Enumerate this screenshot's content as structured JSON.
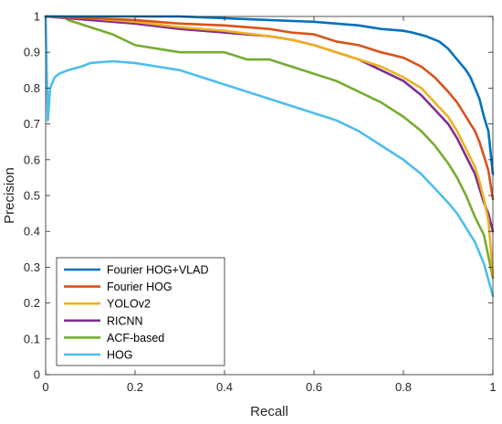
{
  "chart_data": {
    "type": "line",
    "title": "",
    "xlabel": "Recall",
    "ylabel": "Precision",
    "xlim": [
      0,
      1
    ],
    "ylim": [
      0,
      1
    ],
    "xticks": [
      "0",
      "0.2",
      "0.4",
      "0.6",
      "0.8",
      "1"
    ],
    "yticks": [
      "0",
      "0.1",
      "0.2",
      "0.3",
      "0.4",
      "0.5",
      "0.6",
      "0.7",
      "0.8",
      "0.9",
      "1"
    ],
    "grid": false,
    "legend_position": "bottom-left",
    "series": [
      {
        "name": "Fourier HOG+VLAD",
        "color": "#0072BD",
        "points": [
          [
            0.0,
            1.0
          ],
          [
            0.1,
            1.0
          ],
          [
            0.2,
            1.0
          ],
          [
            0.3,
            1.0
          ],
          [
            0.4,
            0.995
          ],
          [
            0.5,
            0.99
          ],
          [
            0.6,
            0.985
          ],
          [
            0.65,
            0.98
          ],
          [
            0.7,
            0.975
          ],
          [
            0.75,
            0.965
          ],
          [
            0.8,
            0.96
          ],
          [
            0.82,
            0.955
          ],
          [
            0.85,
            0.945
          ],
          [
            0.88,
            0.93
          ],
          [
            0.9,
            0.91
          ],
          [
            0.92,
            0.88
          ],
          [
            0.94,
            0.85
          ],
          [
            0.95,
            0.83
          ],
          [
            0.96,
            0.8
          ],
          [
            0.97,
            0.77
          ],
          [
            0.98,
            0.72
          ],
          [
            0.99,
            0.68
          ],
          [
            1.0,
            0.56
          ]
        ]
      },
      {
        "name": "Fourier HOG",
        "color": "#D95319",
        "points": [
          [
            0.0,
            1.0
          ],
          [
            0.1,
            0.995
          ],
          [
            0.2,
            0.99
          ],
          [
            0.3,
            0.98
          ],
          [
            0.4,
            0.975
          ],
          [
            0.5,
            0.965
          ],
          [
            0.55,
            0.955
          ],
          [
            0.6,
            0.95
          ],
          [
            0.65,
            0.93
          ],
          [
            0.7,
            0.92
          ],
          [
            0.75,
            0.9
          ],
          [
            0.8,
            0.885
          ],
          [
            0.84,
            0.86
          ],
          [
            0.87,
            0.83
          ],
          [
            0.9,
            0.79
          ],
          [
            0.92,
            0.76
          ],
          [
            0.94,
            0.72
          ],
          [
            0.96,
            0.68
          ],
          [
            0.97,
            0.65
          ],
          [
            0.98,
            0.61
          ],
          [
            0.99,
            0.57
          ],
          [
            1.0,
            0.49
          ]
        ]
      },
      {
        "name": "YOLOv2",
        "color": "#EDB120",
        "points": [
          [
            0.0,
            1.0
          ],
          [
            0.1,
            0.995
          ],
          [
            0.2,
            0.985
          ],
          [
            0.3,
            0.97
          ],
          [
            0.4,
            0.96
          ],
          [
            0.5,
            0.945
          ],
          [
            0.55,
            0.935
          ],
          [
            0.6,
            0.92
          ],
          [
            0.65,
            0.9
          ],
          [
            0.7,
            0.88
          ],
          [
            0.75,
            0.86
          ],
          [
            0.8,
            0.83
          ],
          [
            0.84,
            0.8
          ],
          [
            0.87,
            0.76
          ],
          [
            0.9,
            0.72
          ],
          [
            0.92,
            0.68
          ],
          [
            0.94,
            0.63
          ],
          [
            0.96,
            0.58
          ],
          [
            0.97,
            0.54
          ],
          [
            0.98,
            0.49
          ],
          [
            0.99,
            0.43
          ],
          [
            1.0,
            0.28
          ]
        ]
      },
      {
        "name": "RICNN",
        "color": "#7E2F8E",
        "points": [
          [
            0.0,
            1.0
          ],
          [
            0.1,
            0.99
          ],
          [
            0.2,
            0.98
          ],
          [
            0.3,
            0.965
          ],
          [
            0.4,
            0.955
          ],
          [
            0.5,
            0.945
          ],
          [
            0.55,
            0.935
          ],
          [
            0.6,
            0.92
          ],
          [
            0.65,
            0.9
          ],
          [
            0.7,
            0.88
          ],
          [
            0.75,
            0.85
          ],
          [
            0.8,
            0.82
          ],
          [
            0.84,
            0.78
          ],
          [
            0.87,
            0.74
          ],
          [
            0.9,
            0.7
          ],
          [
            0.92,
            0.66
          ],
          [
            0.94,
            0.61
          ],
          [
            0.96,
            0.56
          ],
          [
            0.97,
            0.52
          ],
          [
            0.98,
            0.48
          ],
          [
            0.99,
            0.45
          ],
          [
            1.0,
            0.4
          ]
        ]
      },
      {
        "name": "ACF-based",
        "color": "#77AC30",
        "points": [
          [
            0.0,
            1.0
          ],
          [
            0.04,
            1.0
          ],
          [
            0.05,
            0.99
          ],
          [
            0.1,
            0.97
          ],
          [
            0.15,
            0.95
          ],
          [
            0.2,
            0.92
          ],
          [
            0.25,
            0.91
          ],
          [
            0.3,
            0.9
          ],
          [
            0.35,
            0.9
          ],
          [
            0.4,
            0.9
          ],
          [
            0.45,
            0.88
          ],
          [
            0.5,
            0.88
          ],
          [
            0.55,
            0.86
          ],
          [
            0.6,
            0.84
          ],
          [
            0.65,
            0.82
          ],
          [
            0.7,
            0.79
          ],
          [
            0.75,
            0.76
          ],
          [
            0.8,
            0.72
          ],
          [
            0.84,
            0.68
          ],
          [
            0.87,
            0.64
          ],
          [
            0.9,
            0.59
          ],
          [
            0.92,
            0.55
          ],
          [
            0.94,
            0.5
          ],
          [
            0.96,
            0.44
          ],
          [
            0.98,
            0.39
          ],
          [
            1.0,
            0.27
          ]
        ]
      },
      {
        "name": "HOG",
        "color": "#4DBEEE",
        "points": [
          [
            0.0,
            1.0
          ],
          [
            0.005,
            0.71
          ],
          [
            0.01,
            0.8
          ],
          [
            0.02,
            0.83
          ],
          [
            0.03,
            0.84
          ],
          [
            0.05,
            0.85
          ],
          [
            0.08,
            0.86
          ],
          [
            0.1,
            0.87
          ],
          [
            0.15,
            0.875
          ],
          [
            0.2,
            0.87
          ],
          [
            0.25,
            0.86
          ],
          [
            0.3,
            0.85
          ],
          [
            0.35,
            0.83
          ],
          [
            0.4,
            0.81
          ],
          [
            0.45,
            0.79
          ],
          [
            0.5,
            0.77
          ],
          [
            0.55,
            0.75
          ],
          [
            0.6,
            0.73
          ],
          [
            0.65,
            0.71
          ],
          [
            0.7,
            0.68
          ],
          [
            0.75,
            0.64
          ],
          [
            0.8,
            0.6
          ],
          [
            0.84,
            0.56
          ],
          [
            0.87,
            0.52
          ],
          [
            0.9,
            0.48
          ],
          [
            0.92,
            0.45
          ],
          [
            0.94,
            0.41
          ],
          [
            0.96,
            0.37
          ],
          [
            0.98,
            0.31
          ],
          [
            1.0,
            0.22
          ]
        ]
      }
    ]
  }
}
